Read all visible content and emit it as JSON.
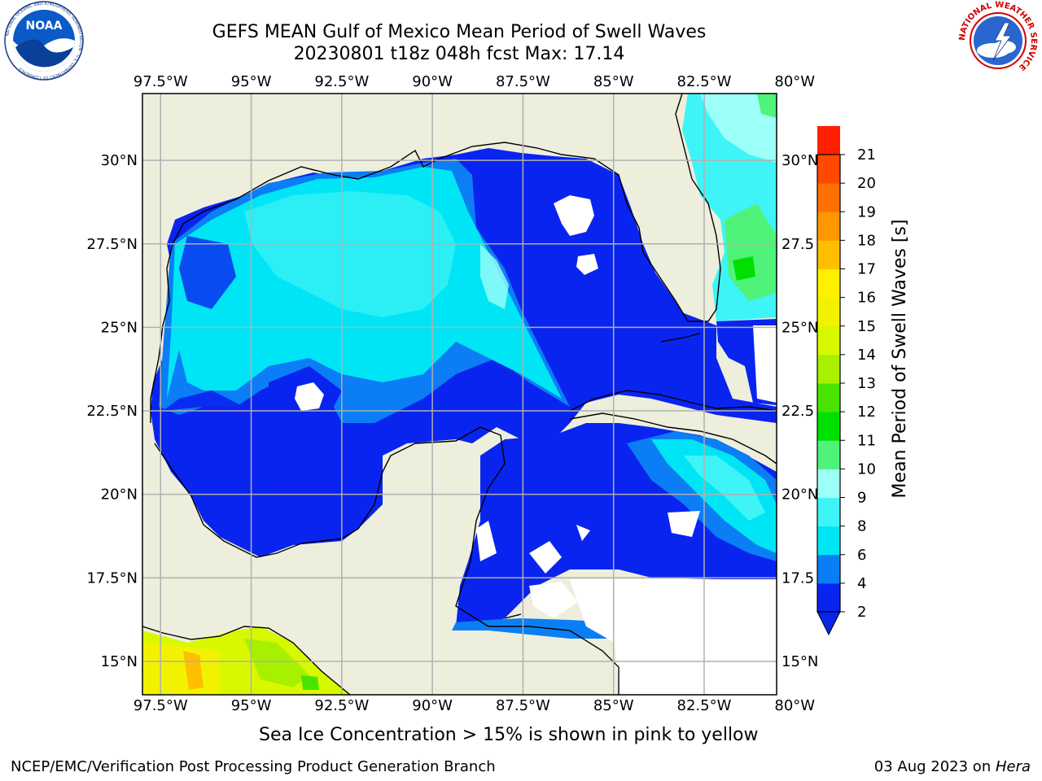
{
  "title": {
    "line1": "GEFS MEAN Gulf of Mexico Mean Period of Swell Waves",
    "line2": "20230801 t18z 048h fcst   Max: 17.14"
  },
  "logos": {
    "left": {
      "name": "noaa-logo",
      "text": "NOAA",
      "ring_text": "NATIONAL OCEANIC AND ATMOSPHERIC ADMINISTRATION · U.S. DEPARTMENT OF COMMERCE"
    },
    "right": {
      "name": "nws-logo",
      "ring_text": "NATIONAL WEATHER SERVICE"
    }
  },
  "map": {
    "lon_range": [
      -98,
      -80.5
    ],
    "lat_range": [
      14,
      32
    ],
    "lon_ticks": [
      "97.5°W",
      "95°W",
      "92.5°W",
      "90°W",
      "87.5°W",
      "85°W",
      "82.5°W",
      "80°W"
    ],
    "lon_values": [
      -97.5,
      -95,
      -92.5,
      -90,
      -87.5,
      -85,
      -82.5,
      -80
    ],
    "lat_ticks_left": [
      "30°N",
      "27.5°N",
      "25°N",
      "22.5°N",
      "20°N",
      "17.5°N",
      "15°N"
    ],
    "lat_ticks_right": [
      "30°N",
      "27.5",
      "25°N",
      "22.5",
      "20°N",
      "17.5",
      "15°N"
    ],
    "lat_values": [
      30,
      27.5,
      25,
      22.5,
      20,
      17.5,
      15
    ],
    "grid": true,
    "land_color": "#eeeedd",
    "no_data_color": "#ffffff"
  },
  "colorbar": {
    "label": "Mean Period of Swell Waves [s]",
    "ticks": [
      "2",
      "4",
      "6",
      "8",
      "9",
      "10",
      "11",
      "12",
      "13",
      "14",
      "15",
      "16",
      "17",
      "18",
      "19",
      "20",
      "21"
    ],
    "colors": [
      "#0a24f0",
      "#0b7ef5",
      "#00e5f5",
      "#3ff4f6",
      "#9cfff8",
      "#4ff37a",
      "#00e000",
      "#48e400",
      "#a6f000",
      "#d8f800",
      "#f2f200",
      "#fff000",
      "#ffbe00",
      "#ff9800",
      "#ff7000",
      "#ff4800",
      "#ff2000"
    ],
    "extend": "min"
  },
  "note": "Sea Ice Concentration > 15% is shown in pink to yellow",
  "footer": {
    "left": "NCEP/EMC/Verification Post Processing Product Generation Branch",
    "right_date": "03 Aug 2023 on ",
    "right_host": "Hera"
  }
}
